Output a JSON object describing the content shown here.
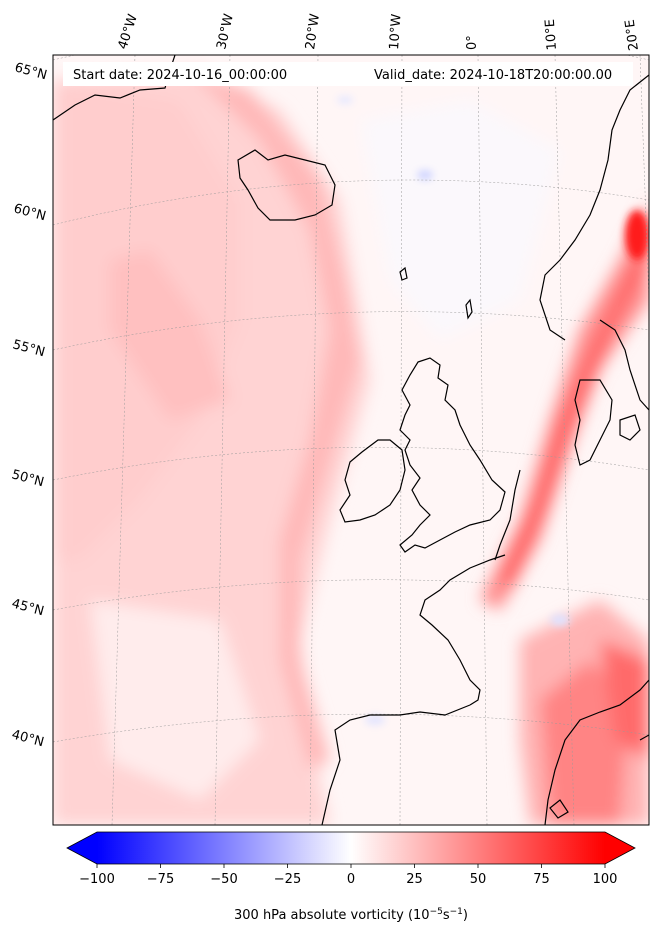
{
  "header": {
    "start_text": "Start date: 2024-10-16_00:00:00",
    "valid_text": "Valid_date: 2024-10-18T20:00:00.00"
  },
  "gridlines": {
    "lat_labels": [
      "65°N",
      "60°N",
      "55°N",
      "50°N",
      "45°N",
      "40°N"
    ],
    "lon_labels": [
      "40°W",
      "30°W",
      "20°W",
      "10°W",
      "0°",
      "10°E",
      "20°E"
    ]
  },
  "colorbar": {
    "min": -100,
    "max": 100,
    "ticks": [
      "−100",
      "−75",
      "−50",
      "−25",
      "0",
      "25",
      "50",
      "75",
      "100"
    ],
    "label_prefix": "300 hPa absolute vorticity (10",
    "label_exp1": "−5",
    "label_mid": "s",
    "label_exp2": "−1",
    "label_suffix": ")",
    "colormap": "bwr",
    "low_color": "#0000ff",
    "mid_color": "#ffffff",
    "high_color": "#ff0000"
  }
}
